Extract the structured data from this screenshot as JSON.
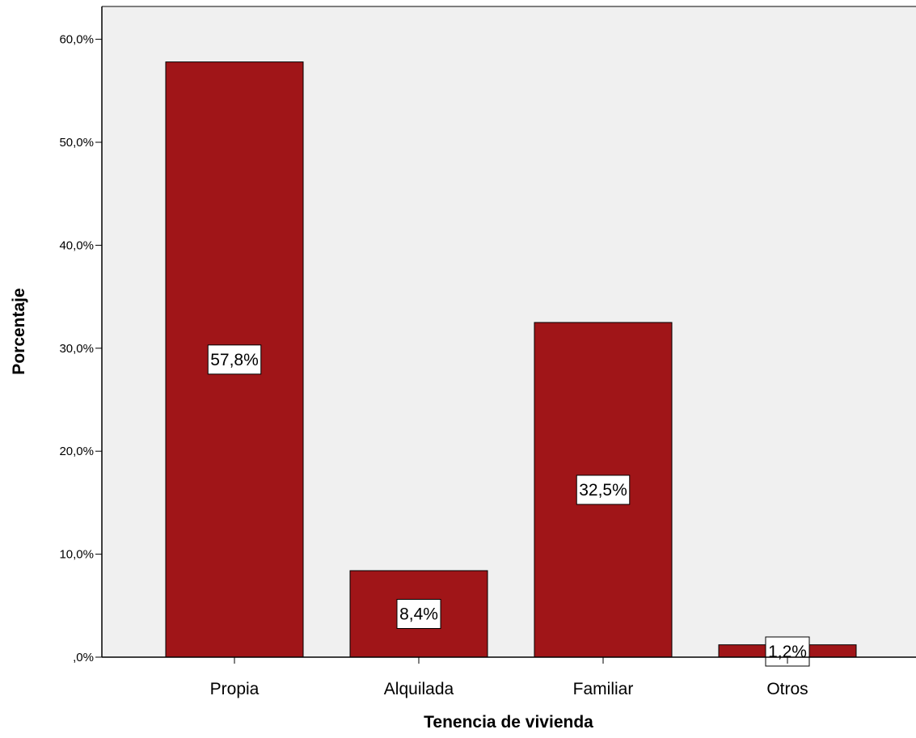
{
  "chart_data": {
    "type": "bar",
    "title": "",
    "xlabel": "Tenencia de vivienda",
    "ylabel": "Porcentaje",
    "categories": [
      "Propia",
      "Alquilada",
      "Familiar",
      "Otros"
    ],
    "values": [
      57.8,
      8.4,
      32.5,
      1.2
    ],
    "data_labels": [
      "57,8%",
      "8,4%",
      "32,5%",
      "1,2%"
    ],
    "ylim": [
      0,
      63
    ],
    "yticks": [
      0,
      10,
      20,
      30,
      40,
      50,
      60
    ],
    "ytick_labels": [
      ",0%",
      "10,0%",
      "20,0%",
      "30,0%",
      "40,0%",
      "50,0%",
      "60,0%"
    ],
    "grid": false,
    "legend": "none",
    "colors": {
      "bar": "#a01518",
      "plot_background": "#f0f0f0",
      "page_background": "#ffffff"
    }
  }
}
